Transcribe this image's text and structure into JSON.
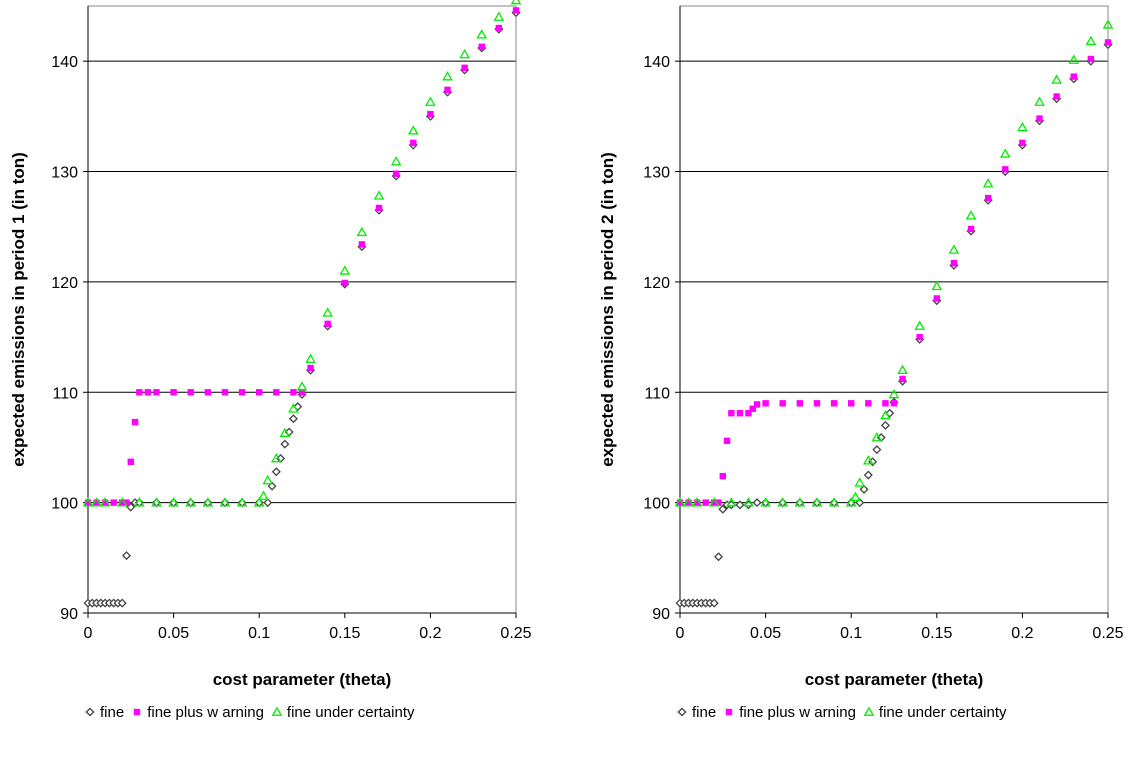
{
  "chart_data": [
    {
      "type": "scatter",
      "xlabel": "cost parameter (theta)",
      "ylabel": "expected emissions in period 1 (in ton)",
      "xlim": [
        0,
        0.25
      ],
      "ylim": [
        90,
        145
      ],
      "xticks": [
        "0",
        "0.05",
        "0.1",
        "0.15",
        "0.2",
        "0.25"
      ],
      "yticks": [
        "90",
        "100",
        "110",
        "120",
        "130",
        "140"
      ],
      "grid": "horizontal",
      "legend_position": "bottom",
      "series": [
        {
          "name": "fine",
          "marker": "diamond",
          "color": "#444444",
          "points": [
            [
              0,
              90.9
            ],
            [
              0.0025,
              90.9
            ],
            [
              0.005,
              90.9
            ],
            [
              0.0075,
              90.9
            ],
            [
              0.01,
              90.9
            ],
            [
              0.0125,
              90.9
            ],
            [
              0.015,
              90.9
            ],
            [
              0.0175,
              90.9
            ],
            [
              0.02,
              90.9
            ],
            [
              0.0225,
              95.2
            ],
            [
              0.025,
              99.6
            ],
            [
              0.0275,
              100
            ],
            [
              0.03,
              100
            ],
            [
              0.04,
              100
            ],
            [
              0.05,
              100
            ],
            [
              0.06,
              100
            ],
            [
              0.07,
              100
            ],
            [
              0.08,
              100
            ],
            [
              0.09,
              100
            ],
            [
              0.1,
              100
            ],
            [
              0.105,
              100
            ],
            [
              0.1075,
              101.5
            ],
            [
              0.11,
              102.8
            ],
            [
              0.1125,
              104
            ],
            [
              0.115,
              105.3
            ],
            [
              0.1175,
              106.4
            ],
            [
              0.12,
              107.6
            ],
            [
              0.1225,
              108.7
            ],
            [
              0.125,
              109.8
            ],
            [
              0.13,
              112
            ],
            [
              0.14,
              116
            ],
            [
              0.15,
              119.8
            ],
            [
              0.16,
              123.2
            ],
            [
              0.17,
              126.5
            ],
            [
              0.18,
              129.6
            ],
            [
              0.19,
              132.4
            ],
            [
              0.2,
              135
            ],
            [
              0.21,
              137.2
            ],
            [
              0.22,
              139.2
            ],
            [
              0.23,
              141.2
            ],
            [
              0.24,
              142.9
            ],
            [
              0.25,
              144.4
            ]
          ]
        },
        {
          "name": "fine plus w arning",
          "marker": "square",
          "color": "#ff00ff",
          "points": [
            [
              0,
              100
            ],
            [
              0.005,
              100
            ],
            [
              0.01,
              100
            ],
            [
              0.015,
              100
            ],
            [
              0.02,
              100
            ],
            [
              0.0225,
              100
            ],
            [
              0.025,
              103.7
            ],
            [
              0.0275,
              107.3
            ],
            [
              0.03,
              110
            ],
            [
              0.035,
              110
            ],
            [
              0.04,
              110
            ],
            [
              0.05,
              110
            ],
            [
              0.06,
              110
            ],
            [
              0.07,
              110
            ],
            [
              0.08,
              110
            ],
            [
              0.09,
              110
            ],
            [
              0.1,
              110
            ],
            [
              0.11,
              110
            ],
            [
              0.12,
              110
            ],
            [
              0.125,
              110
            ],
            [
              0.13,
              112.2
            ],
            [
              0.14,
              116.2
            ],
            [
              0.15,
              119.9
            ],
            [
              0.16,
              123.4
            ],
            [
              0.17,
              126.7
            ],
            [
              0.18,
              129.8
            ],
            [
              0.19,
              132.6
            ],
            [
              0.2,
              135.2
            ],
            [
              0.21,
              137.4
            ],
            [
              0.22,
              139.4
            ],
            [
              0.23,
              141.3
            ],
            [
              0.24,
              143
            ],
            [
              0.25,
              144.6
            ]
          ]
        },
        {
          "name": "fine under certainty",
          "marker": "triangle",
          "color": "#00ee00",
          "points": [
            [
              0,
              100
            ],
            [
              0.005,
              100
            ],
            [
              0.01,
              100
            ],
            [
              0.02,
              100
            ],
            [
              0.03,
              100
            ],
            [
              0.04,
              100
            ],
            [
              0.05,
              100
            ],
            [
              0.06,
              100
            ],
            [
              0.07,
              100
            ],
            [
              0.08,
              100
            ],
            [
              0.09,
              100
            ],
            [
              0.1,
              100
            ],
            [
              0.1025,
              100.6
            ],
            [
              0.105,
              102
            ],
            [
              0.11,
              104
            ],
            [
              0.115,
              106.3
            ],
            [
              0.12,
              108.5
            ],
            [
              0.125,
              110.5
            ],
            [
              0.13,
              113
            ],
            [
              0.14,
              117.2
            ],
            [
              0.15,
              121
            ],
            [
              0.16,
              124.5
            ],
            [
              0.17,
              127.8
            ],
            [
              0.18,
              130.9
            ],
            [
              0.19,
              133.7
            ],
            [
              0.2,
              136.3
            ],
            [
              0.21,
              138.6
            ],
            [
              0.22,
              140.6
            ],
            [
              0.23,
              142.4
            ],
            [
              0.24,
              144
            ],
            [
              0.25,
              145.5
            ]
          ]
        }
      ]
    },
    {
      "type": "scatter",
      "xlabel": "cost parameter (theta)",
      "ylabel": "expected emissions in period 2 (in ton)",
      "xlim": [
        0,
        0.25
      ],
      "ylim": [
        90,
        145
      ],
      "xticks": [
        "0",
        "0.05",
        "0.1",
        "0.15",
        "0.2",
        "0.25"
      ],
      "yticks": [
        "90",
        "100",
        "110",
        "120",
        "130",
        "140"
      ],
      "grid": "horizontal",
      "legend_position": "bottom",
      "series": [
        {
          "name": "fine",
          "marker": "diamond",
          "color": "#444444",
          "points": [
            [
              0,
              90.9
            ],
            [
              0.0025,
              90.9
            ],
            [
              0.005,
              90.9
            ],
            [
              0.0075,
              90.9
            ],
            [
              0.01,
              90.9
            ],
            [
              0.0125,
              90.9
            ],
            [
              0.015,
              90.9
            ],
            [
              0.0175,
              90.9
            ],
            [
              0.02,
              90.9
            ],
            [
              0.0225,
              95.1
            ],
            [
              0.025,
              99.4
            ],
            [
              0.0275,
              99.8
            ],
            [
              0.03,
              99.8
            ],
            [
              0.035,
              99.8
            ],
            [
              0.04,
              99.8
            ],
            [
              0.045,
              100
            ],
            [
              0.05,
              100
            ],
            [
              0.06,
              100
            ],
            [
              0.07,
              100
            ],
            [
              0.08,
              100
            ],
            [
              0.09,
              100
            ],
            [
              0.1,
              100
            ],
            [
              0.105,
              100
            ],
            [
              0.1075,
              101.2
            ],
            [
              0.11,
              102.5
            ],
            [
              0.1125,
              103.7
            ],
            [
              0.115,
              104.8
            ],
            [
              0.1175,
              105.9
            ],
            [
              0.12,
              107
            ],
            [
              0.1225,
              108.1
            ],
            [
              0.125,
              109.1
            ],
            [
              0.13,
              111
            ],
            [
              0.14,
              114.8
            ],
            [
              0.15,
              118.3
            ],
            [
              0.16,
              121.5
            ],
            [
              0.17,
              124.6
            ],
            [
              0.18,
              127.4
            ],
            [
              0.19,
              130
            ],
            [
              0.2,
              132.4
            ],
            [
              0.21,
              134.6
            ],
            [
              0.22,
              136.6
            ],
            [
              0.23,
              138.4
            ],
            [
              0.24,
              140
            ],
            [
              0.25,
              141.5
            ]
          ]
        },
        {
          "name": "fine plus w arning",
          "marker": "square",
          "color": "#ff00ff",
          "points": [
            [
              0,
              100
            ],
            [
              0.005,
              100
            ],
            [
              0.01,
              100
            ],
            [
              0.015,
              100
            ],
            [
              0.02,
              100
            ],
            [
              0.0225,
              100
            ],
            [
              0.025,
              102.4
            ],
            [
              0.0275,
              105.6
            ],
            [
              0.03,
              108.1
            ],
            [
              0.035,
              108.1
            ],
            [
              0.04,
              108.1
            ],
            [
              0.0425,
              108.5
            ],
            [
              0.045,
              108.9
            ],
            [
              0.05,
              109
            ],
            [
              0.06,
              109
            ],
            [
              0.07,
              109
            ],
            [
              0.08,
              109
            ],
            [
              0.09,
              109
            ],
            [
              0.1,
              109
            ],
            [
              0.11,
              109
            ],
            [
              0.12,
              109
            ],
            [
              0.125,
              109
            ],
            [
              0.13,
              111.2
            ],
            [
              0.14,
              115
            ],
            [
              0.15,
              118.5
            ],
            [
              0.16,
              121.7
            ],
            [
              0.17,
              124.8
            ],
            [
              0.18,
              127.6
            ],
            [
              0.19,
              130.2
            ],
            [
              0.2,
              132.6
            ],
            [
              0.21,
              134.8
            ],
            [
              0.22,
              136.8
            ],
            [
              0.23,
              138.6
            ],
            [
              0.24,
              140.2
            ],
            [
              0.25,
              141.7
            ]
          ]
        },
        {
          "name": "fine under certainty",
          "marker": "triangle",
          "color": "#00ee00",
          "points": [
            [
              0,
              100
            ],
            [
              0.005,
              100
            ],
            [
              0.01,
              100
            ],
            [
              0.02,
              100
            ],
            [
              0.03,
              100
            ],
            [
              0.04,
              100
            ],
            [
              0.05,
              100
            ],
            [
              0.06,
              100
            ],
            [
              0.07,
              100
            ],
            [
              0.08,
              100
            ],
            [
              0.09,
              100
            ],
            [
              0.1,
              100
            ],
            [
              0.1025,
              100.5
            ],
            [
              0.105,
              101.8
            ],
            [
              0.11,
              103.8
            ],
            [
              0.115,
              105.9
            ],
            [
              0.12,
              107.9
            ],
            [
              0.125,
              109.8
            ],
            [
              0.13,
              112
            ],
            [
              0.14,
              116
            ],
            [
              0.15,
              119.6
            ],
            [
              0.16,
              122.9
            ],
            [
              0.17,
              126
            ],
            [
              0.18,
              128.9
            ],
            [
              0.19,
              131.6
            ],
            [
              0.2,
              134
            ],
            [
              0.21,
              136.3
            ],
            [
              0.22,
              138.3
            ],
            [
              0.23,
              140.1
            ],
            [
              0.24,
              141.8
            ],
            [
              0.25,
              143.3
            ]
          ]
        }
      ]
    }
  ]
}
